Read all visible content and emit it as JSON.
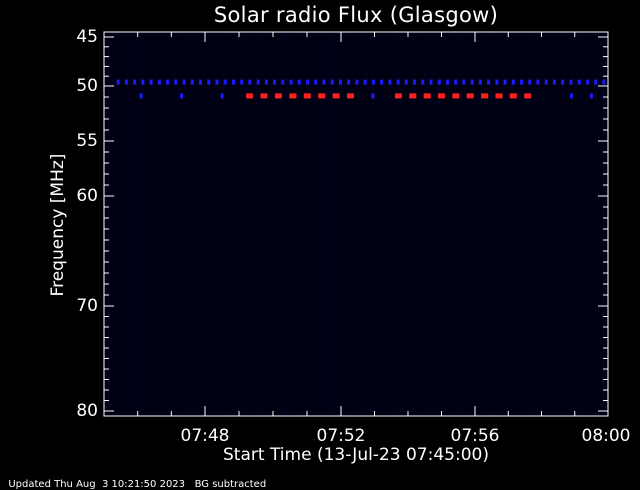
{
  "footer": {
    "updated": "Updated Thu Aug  3 10:21:50 2023",
    "note": "BG subtracted"
  },
  "chart_data": {
    "type": "heatmap",
    "title": "Solar radio Flux (Glasgow)",
    "xlabel": "Start Time (13-Jul-23 07:45:00)",
    "ylabel": "Frequency [MHz]",
    "x_range_minutes": [
      0,
      15
    ],
    "ylim": [
      45,
      80
    ],
    "y_ticks": [
      {
        "value": 45,
        "label": "45"
      },
      {
        "value": 50,
        "label": "50"
      },
      {
        "value": 55,
        "label": "55"
      },
      {
        "value": 60,
        "label": "60"
      },
      {
        "value": 70,
        "label": "70"
      },
      {
        "value": 80,
        "label": "80"
      }
    ],
    "x_ticks": [
      {
        "value": 3,
        "label": "07:48"
      },
      {
        "value": 7,
        "label": "07:52"
      },
      {
        "value": 11,
        "label": "07:56"
      },
      {
        "value": 15,
        "label": "08:00"
      }
    ],
    "colors": {
      "background": "#000000",
      "plot_background": "#000010",
      "blue_band": "#1a1aff",
      "red_band": "#ff2020",
      "axes": "#ffffff"
    },
    "bands": [
      {
        "frequency_mhz": 49.6,
        "t_start_min": 0.3,
        "t_end_min": 15,
        "color": "blue",
        "dashes": 60
      },
      {
        "frequency_mhz": 50.9,
        "t_start_min": 0.5,
        "t_end_min": 4.1,
        "color": "blue",
        "dashes": 3
      },
      {
        "frequency_mhz": 50.9,
        "t_start_min": 4.1,
        "t_end_min": 7.5,
        "color": "red",
        "dashes": 8
      },
      {
        "frequency_mhz": 50.9,
        "t_start_min": 7.5,
        "t_end_min": 8.4,
        "color": "blue",
        "dashes": 1
      },
      {
        "frequency_mhz": 50.9,
        "t_start_min": 8.5,
        "t_end_min": 12.8,
        "color": "red",
        "dashes": 10
      },
      {
        "frequency_mhz": 50.9,
        "t_start_min": 13.6,
        "t_end_min": 14.8,
        "color": "blue",
        "dashes": 2
      }
    ]
  }
}
